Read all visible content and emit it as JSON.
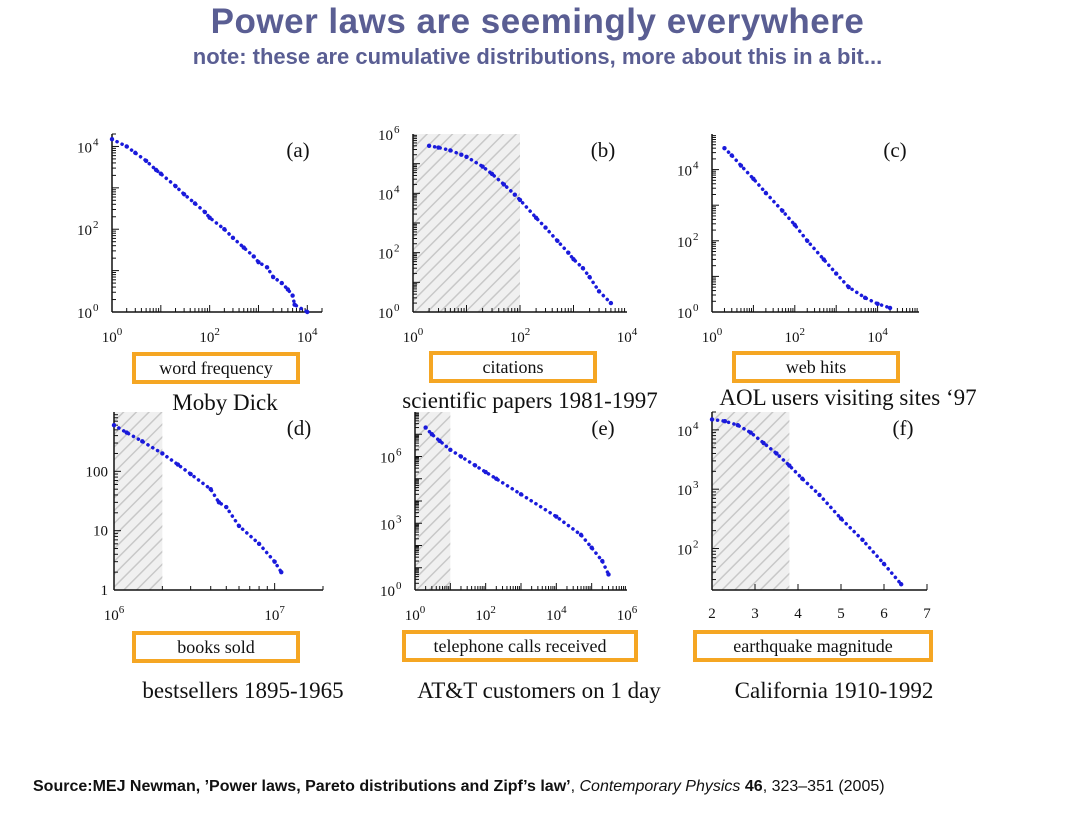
{
  "title": "Power laws are seemingly everywhere",
  "subtitle": "note: these are cumulative distributions, more about this in a bit...",
  "source": {
    "prefix": "Source:MEJ Newman, ’Power laws, Pareto distributions and Zipf’s law’",
    "separator": ", ",
    "journal": "Contemporary Physics",
    "volume": "46",
    "rest": ", 323–351 (2005)"
  },
  "colors": {
    "data": "#1a1adb",
    "title": "#5a5e93",
    "box": "#f5a623",
    "hatch": "#c8c8c8"
  },
  "chart_data": [
    {
      "type": "scatter",
      "panel_label": "(a)",
      "xlabel": "word frequency",
      "caption": "Moby Dick",
      "x_scale": "log",
      "y_scale": "log",
      "xlim": [
        1,
        20000
      ],
      "ylim": [
        1,
        20000
      ],
      "x_ticks": [
        1,
        100,
        10000
      ],
      "y_ticks": [
        1,
        100,
        10000
      ],
      "shaded_below_x": null,
      "x": [
        1,
        2,
        3,
        5,
        8,
        10,
        20,
        30,
        50,
        80,
        100,
        200,
        300,
        500,
        800,
        1000,
        1500,
        2000,
        3000,
        4000,
        5000,
        5500,
        10000
      ],
      "y": [
        15000,
        10000,
        7000,
        4500,
        2700,
        2200,
        1100,
        700,
        420,
        260,
        190,
        100,
        62,
        36,
        22,
        16,
        12,
        7,
        5,
        3.5,
        2.5,
        1.5,
        1
      ]
    },
    {
      "type": "scatter",
      "panel_label": "(b)",
      "xlabel": "citations",
      "caption": "scientific papers 1981-1997",
      "x_scale": "log",
      "y_scale": "log",
      "xlim": [
        1,
        10000
      ],
      "ylim": [
        1,
        1000000
      ],
      "x_ticks": [
        1,
        100,
        10000
      ],
      "y_ticks": [
        1,
        100,
        10000,
        1000000
      ],
      "shaded_below_x": 100,
      "x": [
        2,
        3,
        5,
        8,
        10,
        20,
        30,
        50,
        80,
        100,
        200,
        300,
        500,
        800,
        1000,
        1500,
        2000,
        3000,
        5000
      ],
      "y": [
        400000,
        350000,
        280000,
        200000,
        170000,
        80000,
        45000,
        20000,
        9000,
        6000,
        1500,
        700,
        250,
        100,
        60,
        30,
        15,
        5,
        2
      ]
    },
    {
      "type": "scatter",
      "panel_label": "(c)",
      "xlabel": "web hits",
      "caption": "AOL users visiting sites ‘97",
      "x_scale": "log",
      "y_scale": "log",
      "xlim": [
        1,
        100000
      ],
      "ylim": [
        1,
        100000
      ],
      "x_ticks": [
        1,
        100,
        10000
      ],
      "y_ticks": [
        1,
        100,
        10000
      ],
      "shaded_below_x": null,
      "x": [
        2,
        3,
        5,
        10,
        20,
        50,
        100,
        200,
        500,
        1000,
        2000,
        5000,
        10000,
        20000
      ],
      "y": [
        40000,
        25000,
        13000,
        5500,
        2200,
        700,
        280,
        100,
        30,
        12,
        5,
        2.5,
        1.7,
        1.3
      ]
    },
    {
      "type": "scatter",
      "panel_label": "(d)",
      "xlabel": "books sold",
      "caption": "bestsellers 1895-1965",
      "x_scale": "log",
      "y_scale": "log",
      "xlim": [
        1000000,
        20000000
      ],
      "ylim": [
        1,
        1000
      ],
      "x_ticks": [
        1000000,
        10000000
      ],
      "y_ticks": [
        1,
        10,
        100
      ],
      "y_tick_labels": [
        "1",
        "10",
        "100"
      ],
      "shaded_below_x": 2000000,
      "x": [
        1000000,
        1200000,
        1500000,
        2000000,
        2500000,
        3000000,
        4000000,
        4500000,
        5000000,
        6000000,
        8000000,
        10000000,
        11000000
      ],
      "y": [
        600,
        450,
        320,
        200,
        130,
        90,
        50,
        30,
        25,
        12,
        6,
        3,
        2
      ]
    },
    {
      "type": "scatter",
      "panel_label": "(e)",
      "xlabel": "telephone calls received",
      "caption": "AT&T customers on 1 day",
      "x_scale": "log",
      "y_scale": "log",
      "xlim": [
        1,
        1000000
      ],
      "ylim": [
        1,
        100000000
      ],
      "x_ticks": [
        1,
        100,
        10000,
        1000000
      ],
      "y_ticks": [
        1,
        1000,
        1000000
      ],
      "shaded_below_x": 10,
      "x": [
        2,
        3,
        5,
        10,
        20,
        50,
        100,
        200,
        1000,
        10000,
        50000,
        100000,
        200000,
        300000
      ],
      "y": [
        20000000,
        10000000,
        5000000,
        2000000,
        1000000,
        400000,
        200000,
        100000,
        20000,
        2000,
        300,
        80,
        20,
        5
      ]
    },
    {
      "type": "scatter",
      "panel_label": "(f)",
      "xlabel": "earthquake magnitude",
      "caption": "California 1910-1992",
      "x_scale": "linear",
      "y_scale": "log",
      "xlim": [
        2,
        7
      ],
      "ylim": [
        20,
        20000
      ],
      "x_ticks": [
        2,
        3,
        4,
        5,
        6,
        7
      ],
      "y_ticks": [
        100,
        1000,
        10000
      ],
      "shaded_below_x": 3.8,
      "x": [
        2.0,
        2.3,
        2.6,
        2.9,
        3.2,
        3.5,
        3.8,
        4.1,
        4.5,
        5.0,
        5.5,
        6.0,
        6.4
      ],
      "y": [
        15000,
        14000,
        12000,
        9000,
        6000,
        4000,
        2500,
        1500,
        800,
        320,
        140,
        55,
        25
      ]
    }
  ]
}
